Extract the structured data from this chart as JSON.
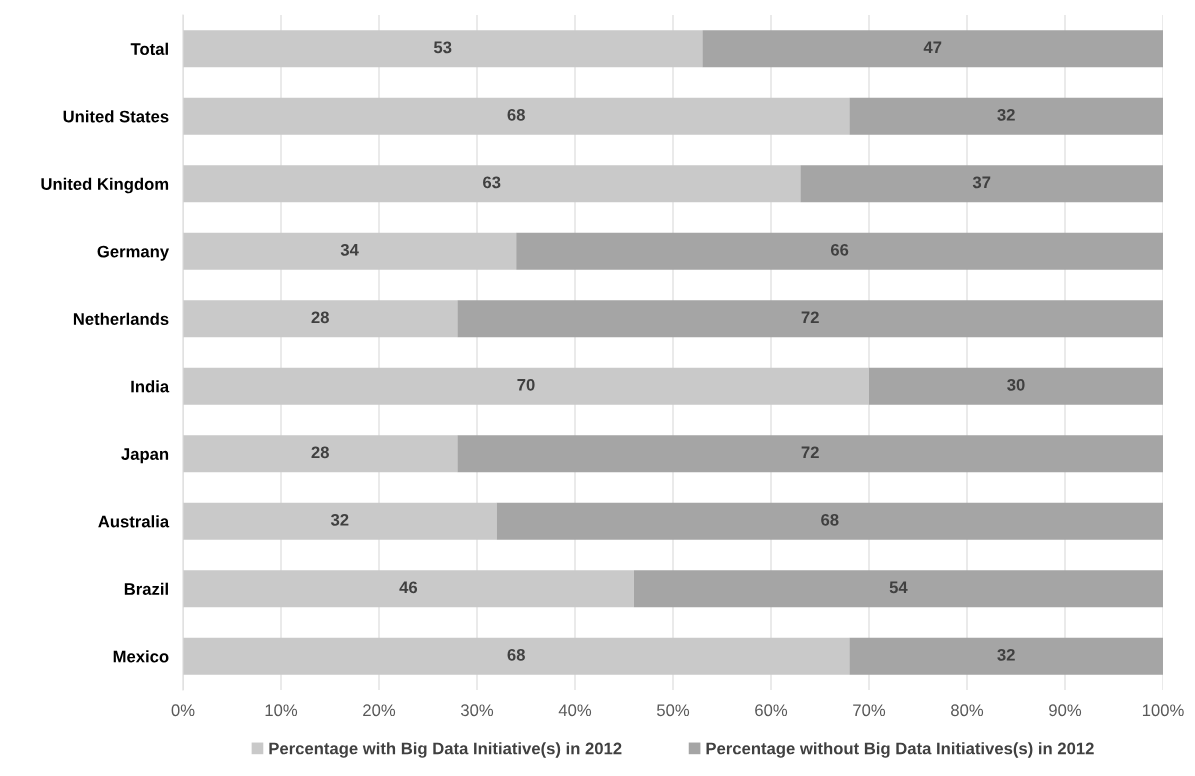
{
  "chart_data": {
    "type": "bar",
    "orientation": "horizontal",
    "stacked": true,
    "categories": [
      "Total",
      "United States",
      "United Kingdom",
      "Germany",
      "Netherlands",
      "India",
      "Japan",
      "Australia",
      "Brazil",
      "Mexico"
    ],
    "series": [
      {
        "name": "Percentage with Big Data Initiative(s) in 2012",
        "color": "#c9c9c9",
        "values": [
          53,
          68,
          63,
          34,
          28,
          70,
          28,
          32,
          46,
          68
        ]
      },
      {
        "name": "Percentage without Big Data Initiatives(s) in 2012",
        "color": "#a5a5a5",
        "values": [
          47,
          32,
          37,
          66,
          72,
          30,
          72,
          68,
          54,
          32
        ]
      }
    ],
    "xlim": [
      0,
      100
    ],
    "xticks": [
      {
        "value": 0,
        "label": "0%"
      },
      {
        "value": 10,
        "label": "10%"
      },
      {
        "value": 20,
        "label": "20%"
      },
      {
        "value": 30,
        "label": "30%"
      },
      {
        "value": 40,
        "label": "40%"
      },
      {
        "value": 50,
        "label": "50%"
      },
      {
        "value": 60,
        "label": "60%"
      },
      {
        "value": 70,
        "label": "70%"
      },
      {
        "value": 80,
        "label": "80%"
      },
      {
        "value": 90,
        "label": "90%"
      },
      {
        "value": 100,
        "label": "100%"
      }
    ],
    "grid": "x",
    "legend": "bottom",
    "data_labels": true
  }
}
